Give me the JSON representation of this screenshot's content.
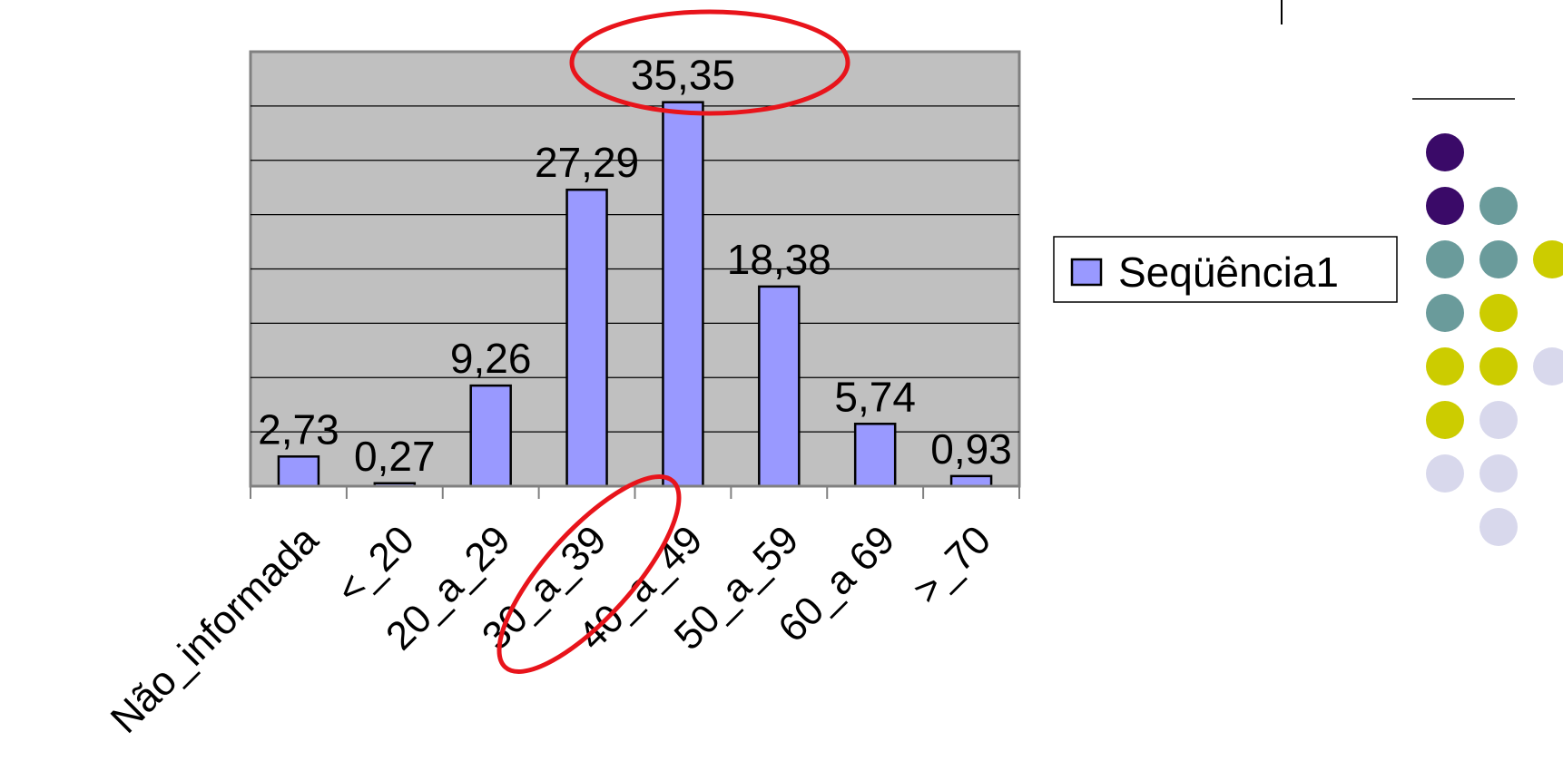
{
  "chart_data": {
    "type": "bar",
    "categories": [
      "Não_informada",
      "<_20",
      "20_a_29",
      "30_a_39",
      "40_a_49",
      "50_a_59",
      "60_a 69",
      ">_70"
    ],
    "series": [
      {
        "name": "Seqüência1",
        "values": [
          2.73,
          0.27,
          9.26,
          27.29,
          35.35,
          18.38,
          5.74,
          0.93
        ]
      }
    ],
    "data_labels": [
      "2,73",
      "0,27",
      "9,26",
      "27,29",
      "35,35",
      "18,38",
      "5,74",
      "0,93"
    ],
    "ylim": [
      0,
      40
    ],
    "grid": true,
    "legend_position": "right",
    "highlighted_categories": [
      "40_a_49"
    ],
    "highlighted_values": [
      "35,35"
    ],
    "colors": {
      "plot_background": "#c0c0c0",
      "bar_fill": "#9999ff",
      "highlight": "#e8141b"
    }
  },
  "decoration": {
    "dot_colors": {
      "purple": "#3a0a68",
      "teal": "#6a9b9b",
      "olive": "#cccc00",
      "lavender": "#d8d8ec"
    }
  }
}
